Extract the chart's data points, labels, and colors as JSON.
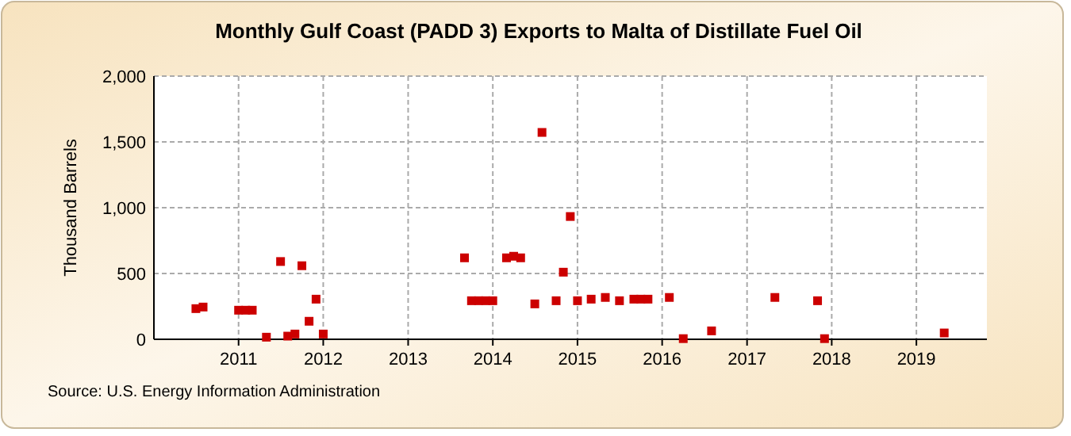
{
  "chart_data": {
    "type": "scatter",
    "title": "Monthly Gulf Coast (PADD 3) Exports to Malta of Distillate Fuel Oil",
    "ylabel": "Thousand Barrels",
    "annotations": [
      "Source: U.S. Energy Information Administration"
    ],
    "x": [
      "2010-07",
      "2010-08",
      "2011-01",
      "2011-02",
      "2011-03",
      "2011-05",
      "2011-07",
      "2011-08",
      "2011-09",
      "2011-10",
      "2011-11",
      "2011-12",
      "2012-01",
      "2013-09",
      "2013-10",
      "2013-11",
      "2013-12",
      "2014-01",
      "2014-03",
      "2014-04",
      "2014-05",
      "2014-07",
      "2014-08",
      "2014-10",
      "2014-11",
      "2014-12",
      "2015-01",
      "2015-03",
      "2015-05",
      "2015-07",
      "2015-09",
      "2015-10",
      "2015-11",
      "2016-02",
      "2016-04",
      "2016-08",
      "2017-05",
      "2017-11",
      "2017-12",
      "2019-05"
    ],
    "series": [
      {
        "color": "#cc0000",
        "values": [
          233,
          245,
          221,
          221,
          221,
          16,
          591,
          24,
          40,
          559,
          137,
          305,
          40,
          619,
          293,
          293,
          293,
          293,
          619,
          631,
          619,
          269,
          1572,
          293,
          510,
          933,
          293,
          305,
          318,
          293,
          305,
          305,
          305,
          318,
          5,
          64,
          318,
          293,
          5,
          48
        ]
      }
    ],
    "xlim": [
      "2010-01",
      "2019-11"
    ],
    "xticks": [
      {
        "value": "2011-01",
        "label": "2011"
      },
      {
        "value": "2012-01",
        "label": "2012"
      },
      {
        "value": "2013-01",
        "label": "2013"
      },
      {
        "value": "2014-01",
        "label": "2014"
      },
      {
        "value": "2015-01",
        "label": "2015"
      },
      {
        "value": "2016-01",
        "label": "2016"
      },
      {
        "value": "2017-01",
        "label": "2017"
      },
      {
        "value": "2018-01",
        "label": "2018"
      },
      {
        "value": "2019-01",
        "label": "2019"
      }
    ],
    "ylim": [
      0,
      2000
    ],
    "yticks": [
      {
        "value": 0,
        "label": "0"
      },
      {
        "value": 500,
        "label": "500"
      },
      {
        "value": 1000,
        "label": "1,000"
      },
      {
        "value": 1500,
        "label": "1,500"
      },
      {
        "value": 2000,
        "label": "2,000"
      }
    ],
    "grid": true,
    "marker": "square"
  }
}
